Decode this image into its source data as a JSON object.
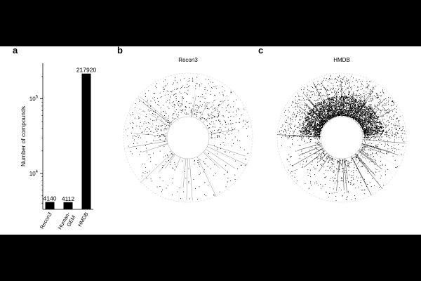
{
  "panels": {
    "a": {
      "letter": "a"
    },
    "b": {
      "letter": "b",
      "title": "Recon3"
    },
    "c": {
      "letter": "c",
      "title": "HMDB"
    }
  },
  "chart_data": [
    {
      "type": "bar",
      "panel": "a",
      "title": "",
      "categories": [
        "Recon3",
        "Human-GEM",
        "HMDB"
      ],
      "category_lines": [
        [
          "Recon3"
        ],
        [
          "Human-",
          "GEM"
        ],
        [
          "HMDB"
        ]
      ],
      "values": [
        4140,
        4112,
        217920
      ],
      "data_labels": [
        "4140",
        "4112",
        "217920"
      ],
      "ylabel": "Number of compounds",
      "yscale": "log",
      "ylim": [
        3300,
        300000
      ],
      "yticks": [
        {
          "value": 10000,
          "base": "10",
          "exp": "4"
        },
        {
          "value": 100000,
          "base": "10",
          "exp": "5"
        }
      ],
      "bar_color": "#000000",
      "grid": false
    },
    {
      "type": "scatter",
      "panel": "b",
      "title": "Recon3",
      "coordinate_system": "polar",
      "point_density": "sparse",
      "color": "#000000"
    },
    {
      "type": "scatter",
      "panel": "c",
      "title": "HMDB",
      "coordinate_system": "polar",
      "point_density": "dense",
      "color": "#000000"
    }
  ]
}
